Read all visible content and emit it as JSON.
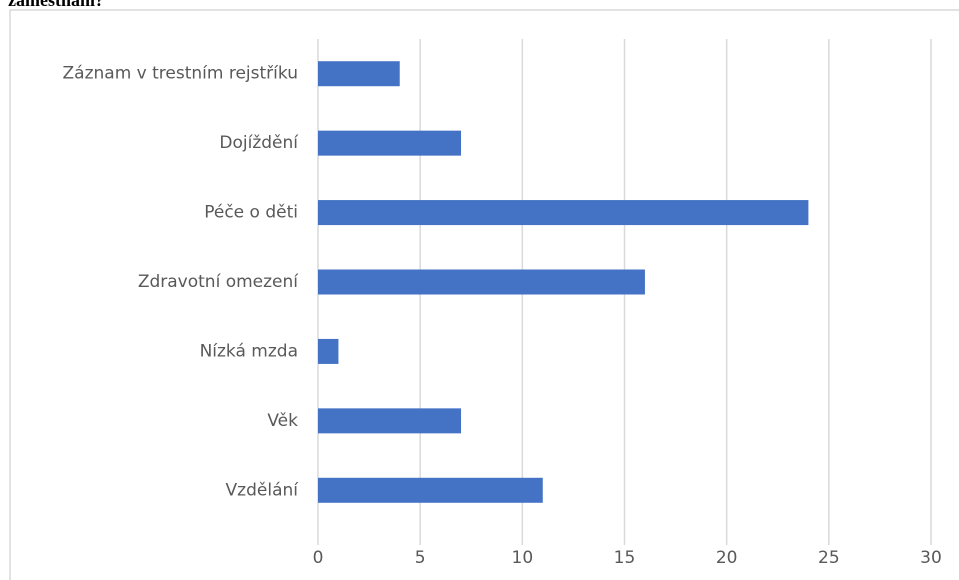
{
  "chart_data": {
    "type": "bar",
    "orientation": "horizontal",
    "title": "zaměstnání?",
    "categories": [
      "Záznam v trestním rejstříku",
      "Dojíždění",
      "Péče o děti",
      "Zdravotní omezení",
      "Nízká mzda",
      "Věk",
      "Vzdělání"
    ],
    "values": [
      4,
      7,
      24,
      16,
      1,
      7,
      11
    ],
    "color": "#4472c4",
    "xlim": [
      0,
      30
    ],
    "xticks": [
      0,
      5,
      10,
      15,
      20,
      25,
      30
    ],
    "grid": true
  }
}
